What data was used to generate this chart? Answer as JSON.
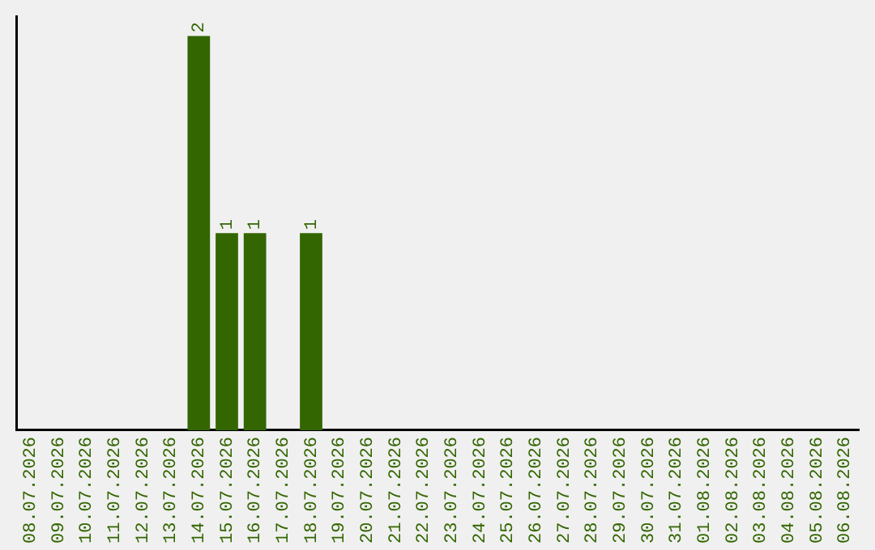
{
  "chart_data": {
    "type": "bar",
    "categories": [
      "08.07.2026",
      "09.07.2026",
      "10.07.2026",
      "11.07.2026",
      "12.07.2026",
      "13.07.2026",
      "14.07.2026",
      "15.07.2026",
      "16.07.2026",
      "17.07.2026",
      "18.07.2026",
      "19.07.2026",
      "20.07.2026",
      "21.07.2026",
      "22.07.2026",
      "23.07.2026",
      "24.07.2026",
      "25.07.2026",
      "26.07.2026",
      "27.07.2026",
      "28.07.2026",
      "29.07.2026",
      "30.07.2026",
      "31.07.2026",
      "01.08.2026",
      "02.08.2026",
      "03.08.2026",
      "04.08.2026",
      "05.08.2026",
      "06.08.2026"
    ],
    "values": [
      0,
      0,
      0,
      0,
      0,
      0,
      2,
      1,
      1,
      0,
      1,
      0,
      0,
      0,
      0,
      0,
      0,
      0,
      0,
      0,
      0,
      0,
      0,
      0,
      0,
      0,
      0,
      0,
      0,
      0
    ],
    "value_labels": [
      null,
      null,
      null,
      null,
      null,
      null,
      "2",
      "1",
      "1",
      null,
      "1",
      null,
      null,
      null,
      null,
      null,
      null,
      null,
      null,
      null,
      null,
      null,
      null,
      null,
      null,
      null,
      null,
      null,
      null,
      null
    ],
    "color": "#336600",
    "ylim": [
      0,
      2.1
    ],
    "grid": false,
    "legend": false
  }
}
